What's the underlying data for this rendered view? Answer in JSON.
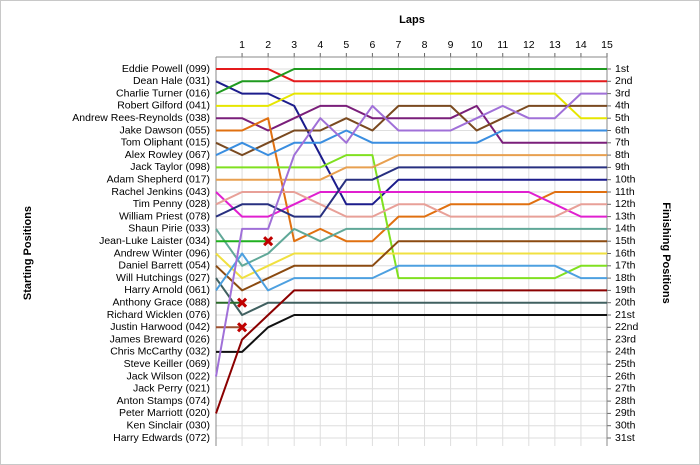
{
  "chart_data": {
    "type": "lap",
    "title": "Laps",
    "y_label": "Starting Positions",
    "y2_label": "Finishing Positions",
    "x": [
      0,
      1,
      2,
      3,
      4,
      5,
      6,
      7,
      8,
      9,
      10,
      11,
      12,
      13,
      14,
      15
    ],
    "xlim": [
      0,
      15
    ],
    "xticks": [
      1,
      2,
      3,
      4,
      5,
      6,
      7,
      8,
      9,
      10,
      11,
      12,
      13,
      14,
      15
    ],
    "ylim": [
      1,
      31
    ],
    "y_inverted": true,
    "grid": true,
    "yticks": [
      {
        "value": 1,
        "label": "1st"
      },
      {
        "value": 2,
        "label": "2nd"
      },
      {
        "value": 3,
        "label": "3rd"
      },
      {
        "value": 4,
        "label": "4th"
      },
      {
        "value": 5,
        "label": "5th"
      },
      {
        "value": 6,
        "label": "6th"
      },
      {
        "value": 7,
        "label": "7th"
      },
      {
        "value": 8,
        "label": "8th"
      },
      {
        "value": 9,
        "label": "9th"
      },
      {
        "value": 10,
        "label": "10th"
      },
      {
        "value": 11,
        "label": "11th"
      },
      {
        "value": 12,
        "label": "12th"
      },
      {
        "value": 13,
        "label": "13th"
      },
      {
        "value": 14,
        "label": "14th"
      },
      {
        "value": 15,
        "label": "15th"
      },
      {
        "value": 16,
        "label": "16th"
      },
      {
        "value": 17,
        "label": "17th"
      },
      {
        "value": 18,
        "label": "18th"
      },
      {
        "value": 19,
        "label": "19th"
      },
      {
        "value": 20,
        "label": "20th"
      },
      {
        "value": 21,
        "label": "21st"
      },
      {
        "value": 22,
        "label": "22nd"
      },
      {
        "value": 23,
        "label": "23rd"
      },
      {
        "value": 24,
        "label": "24th"
      },
      {
        "value": 25,
        "label": "25th"
      },
      {
        "value": 26,
        "label": "26th"
      },
      {
        "value": 27,
        "label": "27th"
      },
      {
        "value": 28,
        "label": "28th"
      },
      {
        "value": 29,
        "label": "29th"
      },
      {
        "value": 30,
        "label": "30th"
      },
      {
        "value": 31,
        "label": "31st"
      }
    ],
    "series": [
      {
        "name": "Eddie Powell (099)",
        "color": "#e41a1c",
        "values": [
          1,
          1,
          1,
          2,
          2,
          2,
          2,
          2,
          2,
          2,
          2,
          2,
          2,
          2,
          2,
          2
        ]
      },
      {
        "name": "Dean Hale (031)",
        "color": "#1c1c8c",
        "values": [
          2,
          3,
          3,
          4,
          8,
          12,
          12,
          10,
          10,
          10,
          10,
          10,
          10,
          10,
          10,
          10
        ]
      },
      {
        "name": "Charlie Turner (016)",
        "color": "#1f9a1f",
        "values": [
          3,
          2,
          2,
          1,
          1,
          1,
          1,
          1,
          1,
          1,
          1,
          1,
          1,
          1,
          1,
          1
        ]
      },
      {
        "name": "Robert Gilford (041)",
        "color": "#e6e600",
        "values": [
          4,
          4,
          4,
          3,
          3,
          3,
          3,
          3,
          3,
          3,
          3,
          3,
          3,
          3,
          5,
          5
        ]
      },
      {
        "name": "Andrew Rees-Reynolds (038)",
        "color": "#7a1f7a",
        "values": [
          5,
          5,
          6,
          5,
          4,
          4,
          5,
          5,
          5,
          5,
          4,
          7,
          7,
          7,
          7,
          7
        ]
      },
      {
        "name": "Jake Dawson (055)",
        "color": "#e07010",
        "values": [
          6,
          6,
          5,
          15,
          14,
          15,
          15,
          13,
          13,
          12,
          12,
          12,
          12,
          11,
          11,
          11
        ]
      },
      {
        "name": "Tom Oliphant (015)",
        "color": "#7a4a20",
        "values": [
          7,
          8,
          7,
          6,
          6,
          5,
          6,
          4,
          4,
          4,
          6,
          5,
          4,
          4,
          4,
          4
        ]
      },
      {
        "name": "Alex Rowley (067)",
        "color": "#3a8ee0",
        "values": [
          8,
          7,
          8,
          7,
          7,
          6,
          7,
          7,
          7,
          7,
          7,
          6,
          6,
          6,
          6,
          6
        ]
      },
      {
        "name": "Jack Taylor (098)",
        "color": "#80e020",
        "values": [
          9,
          9,
          9,
          9,
          9,
          8,
          8,
          18,
          18,
          18,
          18,
          18,
          18,
          18,
          17,
          17
        ]
      },
      {
        "name": "Adam Shepherd (017)",
        "color": "#e8a050",
        "values": [
          10,
          10,
          10,
          10,
          10,
          9,
          9,
          8,
          8,
          8,
          8,
          8,
          8,
          8,
          8,
          8
        ]
      },
      {
        "name": "Rachel Jenkins (043)",
        "color": "#e020d0",
        "values": [
          11,
          13,
          13,
          12,
          11,
          11,
          11,
          11,
          11,
          11,
          11,
          11,
          11,
          12,
          13,
          13
        ]
      },
      {
        "name": "Tim Penny (028)",
        "color": "#e8a098",
        "values": [
          12,
          11,
          11,
          11,
          12,
          13,
          13,
          12,
          12,
          13,
          13,
          13,
          13,
          13,
          12,
          12
        ]
      },
      {
        "name": "William Priest (078)",
        "color": "#283080",
        "values": [
          13,
          12,
          12,
          13,
          13,
          10,
          10,
          9,
          9,
          9,
          9,
          9,
          9,
          9,
          9,
          9
        ]
      },
      {
        "name": "Shaun Pirie (033)",
        "color": "#60a898",
        "values": [
          14,
          17,
          16,
          14,
          15,
          14,
          14,
          14,
          14,
          14,
          14,
          14,
          14,
          14,
          14,
          14
        ]
      },
      {
        "name": "Jean-Luke Laister (034)",
        "color": "#20b020",
        "retired": true,
        "values": [
          15,
          15,
          15,
          null,
          null,
          null,
          null,
          null,
          null,
          null,
          null,
          null,
          null,
          null,
          null,
          null
        ]
      },
      {
        "name": "Andrew Winter (096)",
        "color": "#f0e040",
        "values": [
          16,
          18,
          17,
          16,
          16,
          16,
          16,
          16,
          16,
          16,
          16,
          16,
          16,
          16,
          16,
          16
        ]
      },
      {
        "name": "Daniel Barrett (054)",
        "color": "#8b4a10",
        "values": [
          17,
          19,
          18,
          17,
          17,
          17,
          17,
          15,
          15,
          15,
          15,
          15,
          15,
          15,
          15,
          15
        ]
      },
      {
        "name": "Will Hutchings (027)",
        "color": "#406060",
        "values": [
          18,
          21,
          20,
          20,
          20,
          20,
          20,
          20,
          20,
          20,
          20,
          20,
          20,
          20,
          20,
          20
        ]
      },
      {
        "name": "Harry Arnold (061)",
        "color": "#4da0e0",
        "values": [
          19,
          16,
          19,
          18,
          18,
          18,
          18,
          17,
          17,
          17,
          17,
          17,
          17,
          17,
          18,
          18
        ]
      },
      {
        "name": "Anthony Grace (088)",
        "color": "#2a6a2a",
        "retired": true,
        "values": [
          20,
          20,
          null,
          null,
          null,
          null,
          null,
          null,
          null,
          null,
          null,
          null,
          null,
          null,
          null,
          null
        ]
      },
      {
        "name": "Richard Wicklen (076)",
        "color": "#555555",
        "values": [
          21,
          null,
          null,
          null,
          null,
          null,
          null,
          null,
          null,
          null,
          null,
          null,
          null,
          null,
          null,
          null
        ]
      },
      {
        "name": "Justin Harwood (042)",
        "color": "#a05030",
        "retired": true,
        "values": [
          22,
          22,
          null,
          null,
          null,
          null,
          null,
          null,
          null,
          null,
          null,
          null,
          null,
          null,
          null,
          null
        ]
      },
      {
        "name": "James Breward (026)",
        "color": "#555555",
        "values": [
          23,
          null,
          null,
          null,
          null,
          null,
          null,
          null,
          null,
          null,
          null,
          null,
          null,
          null,
          null,
          null
        ]
      },
      {
        "name": "Chris McCarthy (032)",
        "color": "#111111",
        "values": [
          24,
          24,
          22,
          21,
          21,
          21,
          21,
          21,
          21,
          21,
          21,
          21,
          21,
          21,
          21,
          21
        ]
      },
      {
        "name": "Steve Keiller (069)",
        "color": "#555555",
        "values": [
          25,
          null,
          null,
          null,
          null,
          null,
          null,
          null,
          null,
          null,
          null,
          null,
          null,
          null,
          null,
          null
        ]
      },
      {
        "name": "Jack Wilson (022)",
        "color": "#a070d8",
        "values": [
          26,
          14,
          14,
          8,
          5,
          7,
          4,
          6,
          6,
          6,
          5,
          4,
          5,
          5,
          3,
          3
        ]
      },
      {
        "name": "Jack Perry (021)",
        "color": "#555555",
        "values": [
          27,
          null,
          null,
          null,
          null,
          null,
          null,
          null,
          null,
          null,
          null,
          null,
          null,
          null,
          null,
          null
        ]
      },
      {
        "name": "Anton Stamps (074)",
        "color": "#555555",
        "values": [
          28,
          null,
          null,
          null,
          null,
          null,
          null,
          null,
          null,
          null,
          null,
          null,
          null,
          null,
          null,
          null
        ]
      },
      {
        "name": "Peter Marriott (020)",
        "color": "#8b0000",
        "values": [
          29,
          23,
          21,
          19,
          19,
          19,
          19,
          19,
          19,
          19,
          19,
          19,
          19,
          19,
          19,
          19
        ]
      },
      {
        "name": "Ken Sinclair (030)",
        "color": "#555555",
        "values": [
          30,
          null,
          null,
          null,
          null,
          null,
          null,
          null,
          null,
          null,
          null,
          null,
          null,
          null,
          null,
          null
        ]
      },
      {
        "name": "Harry Edwards (072)",
        "color": "#555555",
        "values": [
          31,
          null,
          null,
          null,
          null,
          null,
          null,
          null,
          null,
          null,
          null,
          null,
          null,
          null,
          null,
          null
        ]
      }
    ]
  }
}
